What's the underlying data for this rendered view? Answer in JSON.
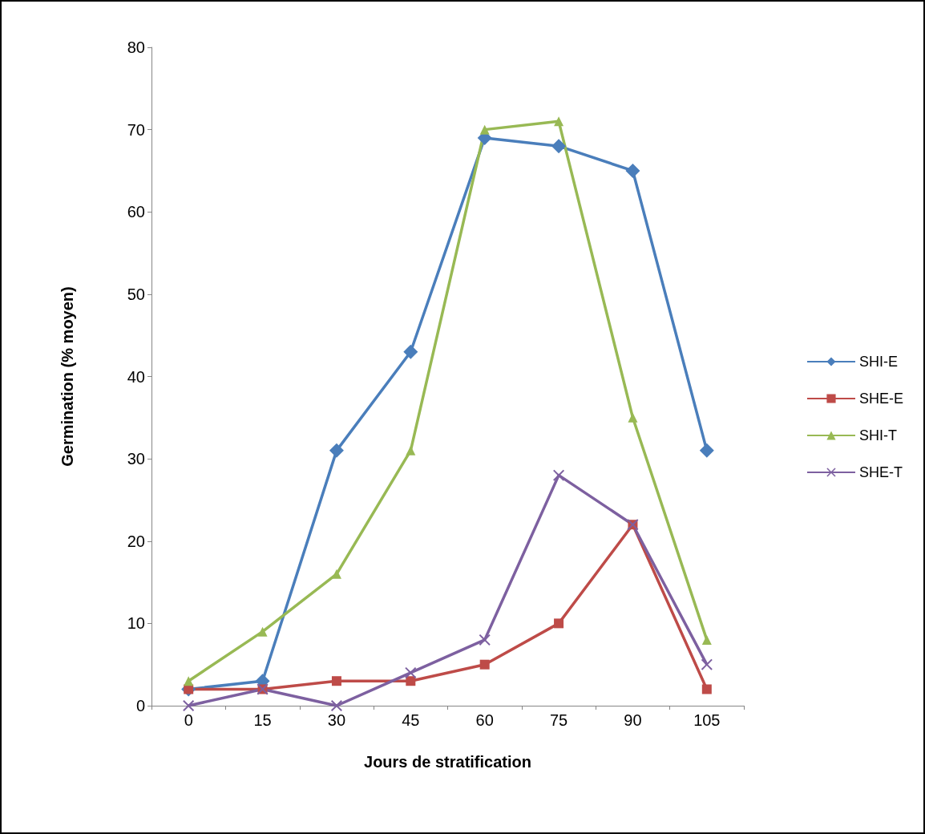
{
  "chart_data": {
    "type": "line",
    "xlabel": "Jours de stratification",
    "ylabel": "Germination (% moyen)",
    "categories": [
      "0",
      "15",
      "30",
      "45",
      "60",
      "75",
      "90",
      "105"
    ],
    "series": [
      {
        "name": "SHI-E",
        "color": "#4a7ebb",
        "marker": "diamond",
        "values": [
          2,
          3,
          31,
          43,
          69,
          68,
          65,
          31
        ]
      },
      {
        "name": "SHE-E",
        "color": "#be4b48",
        "marker": "square",
        "values": [
          2,
          2,
          3,
          3,
          5,
          10,
          22,
          2
        ]
      },
      {
        "name": "SHI-T",
        "color": "#98b954",
        "marker": "triangle",
        "values": [
          3,
          9,
          16,
          31,
          70,
          71,
          35,
          8
        ]
      },
      {
        "name": "SHE-T",
        "color": "#7d60a0",
        "marker": "cross",
        "values": [
          0,
          2,
          0,
          4,
          8,
          28,
          22,
          5
        ]
      }
    ],
    "ylim": [
      0,
      80
    ],
    "yticks": [
      0,
      10,
      20,
      30,
      40,
      50,
      60,
      70,
      80
    ],
    "grid": false,
    "legend": "right"
  }
}
